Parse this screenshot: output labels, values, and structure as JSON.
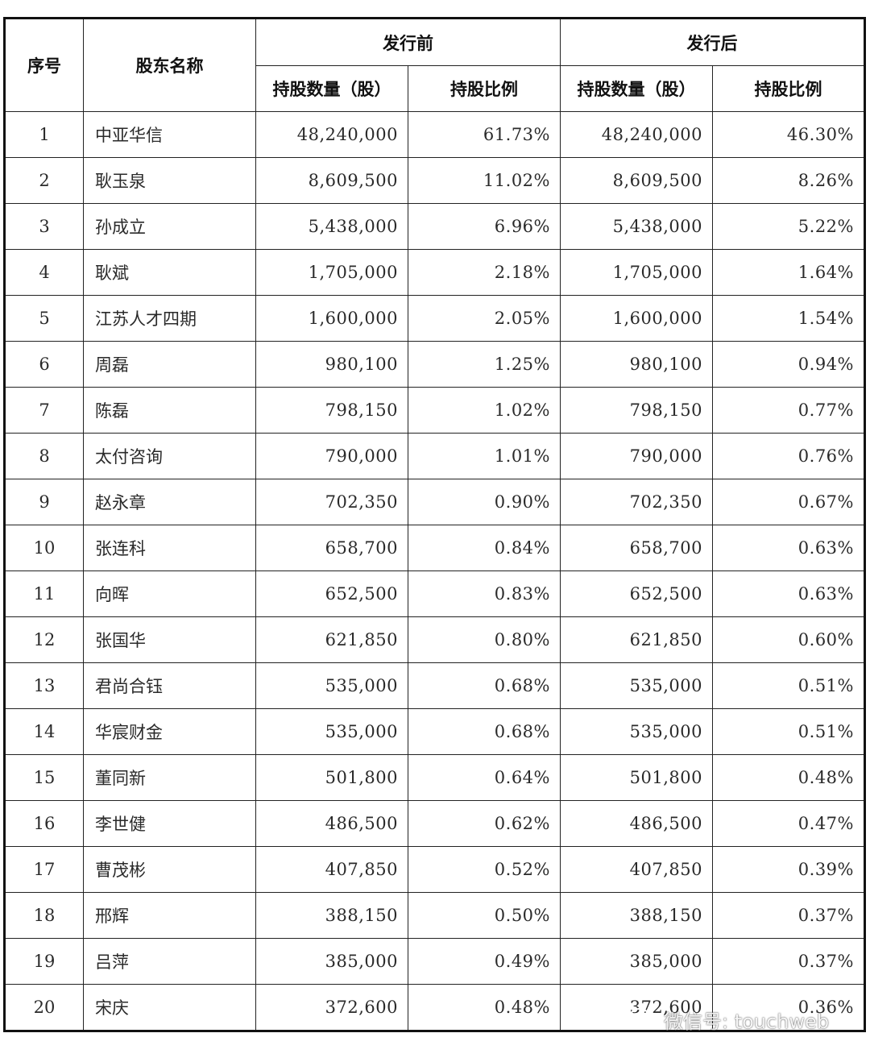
{
  "header": {
    "index": "序号",
    "name": "股东名称",
    "before": "发行前",
    "after": "发行后",
    "quantity": "持股数量（股）",
    "ratio": "持股比例"
  },
  "rows": [
    {
      "index": "1",
      "name": "中亚华信",
      "before_qty": "48,240,000",
      "before_ratio": "61.73%",
      "after_qty": "48,240,000",
      "after_ratio": "46.30%"
    },
    {
      "index": "2",
      "name": "耿玉泉",
      "before_qty": "8,609,500",
      "before_ratio": "11.02%",
      "after_qty": "8,609,500",
      "after_ratio": "8.26%"
    },
    {
      "index": "3",
      "name": "孙成立",
      "before_qty": "5,438,000",
      "before_ratio": "6.96%",
      "after_qty": "5,438,000",
      "after_ratio": "5.22%"
    },
    {
      "index": "4",
      "name": "耿斌",
      "before_qty": "1,705,000",
      "before_ratio": "2.18%",
      "after_qty": "1,705,000",
      "after_ratio": "1.64%"
    },
    {
      "index": "5",
      "name": "江苏人才四期",
      "before_qty": "1,600,000",
      "before_ratio": "2.05%",
      "after_qty": "1,600,000",
      "after_ratio": "1.54%"
    },
    {
      "index": "6",
      "name": "周磊",
      "before_qty": "980,100",
      "before_ratio": "1.25%",
      "after_qty": "980,100",
      "after_ratio": "0.94%"
    },
    {
      "index": "7",
      "name": "陈磊",
      "before_qty": "798,150",
      "before_ratio": "1.02%",
      "after_qty": "798,150",
      "after_ratio": "0.77%"
    },
    {
      "index": "8",
      "name": "太付咨询",
      "before_qty": "790,000",
      "before_ratio": "1.01%",
      "after_qty": "790,000",
      "after_ratio": "0.76%"
    },
    {
      "index": "9",
      "name": "赵永章",
      "before_qty": "702,350",
      "before_ratio": "0.90%",
      "after_qty": "702,350",
      "after_ratio": "0.67%"
    },
    {
      "index": "10",
      "name": "张连科",
      "before_qty": "658,700",
      "before_ratio": "0.84%",
      "after_qty": "658,700",
      "after_ratio": "0.63%"
    },
    {
      "index": "11",
      "name": "向晖",
      "before_qty": "652,500",
      "before_ratio": "0.83%",
      "after_qty": "652,500",
      "after_ratio": "0.63%"
    },
    {
      "index": "12",
      "name": "张国华",
      "before_qty": "621,850",
      "before_ratio": "0.80%",
      "after_qty": "621,850",
      "after_ratio": "0.60%"
    },
    {
      "index": "13",
      "name": "君尚合钰",
      "before_qty": "535,000",
      "before_ratio": "0.68%",
      "after_qty": "535,000",
      "after_ratio": "0.51%"
    },
    {
      "index": "14",
      "name": "华宸财金",
      "before_qty": "535,000",
      "before_ratio": "0.68%",
      "after_qty": "535,000",
      "after_ratio": "0.51%"
    },
    {
      "index": "15",
      "name": "董同新",
      "before_qty": "501,800",
      "before_ratio": "0.64%",
      "after_qty": "501,800",
      "after_ratio": "0.48%"
    },
    {
      "index": "16",
      "name": "李世健",
      "before_qty": "486,500",
      "before_ratio": "0.62%",
      "after_qty": "486,500",
      "after_ratio": "0.47%"
    },
    {
      "index": "17",
      "name": "曹茂彬",
      "before_qty": "407,850",
      "before_ratio": "0.52%",
      "after_qty": "407,850",
      "after_ratio": "0.39%"
    },
    {
      "index": "18",
      "name": "邢辉",
      "before_qty": "388,150",
      "before_ratio": "0.50%",
      "after_qty": "388,150",
      "after_ratio": "0.37%"
    },
    {
      "index": "19",
      "name": "吕萍",
      "before_qty": "385,000",
      "before_ratio": "0.49%",
      "after_qty": "385,000",
      "after_ratio": "0.37%"
    },
    {
      "index": "20",
      "name": "宋庆",
      "before_qty": "372,600",
      "before_ratio": "0.48%",
      "after_qty": "372,600",
      "after_ratio": "0.36%"
    }
  ],
  "watermark": {
    "text": "微信号: touchweb",
    "icon": "wechat-icon"
  }
}
